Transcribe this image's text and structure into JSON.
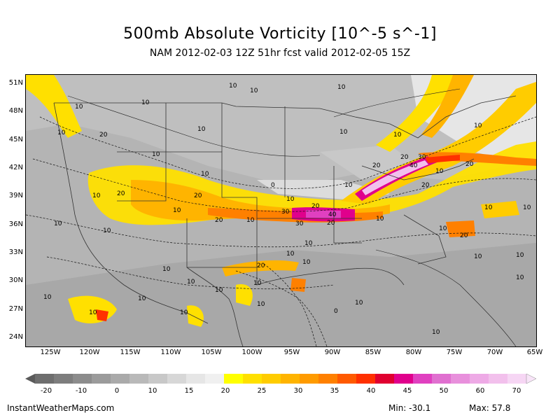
{
  "title": "500mb Absolute Vorticity [10^-5 s^-1]",
  "subtitle": "NAM 2012-02-03 12Z 51hr fcst valid 2012-02-05 15Z",
  "lat_labels": [
    "51N",
    "48N",
    "45N",
    "42N",
    "39N",
    "36N",
    "33N",
    "30N",
    "27N",
    "24N"
  ],
  "lon_labels": [
    "125W",
    "120W",
    "115W",
    "110W",
    "105W",
    "100W",
    "95W",
    "90W",
    "85W",
    "80W",
    "75W",
    "70W",
    "65W"
  ],
  "colorbar": {
    "labels": [
      "-20",
      "-10",
      "0",
      "10",
      "15",
      "20",
      "25",
      "30",
      "35",
      "40",
      "45",
      "50",
      "60",
      "70"
    ],
    "colors": [
      "#6e6e6e",
      "#7d7d7d",
      "#8c8c8c",
      "#9b9b9b",
      "#aaaaaa",
      "#b9b9b9",
      "#c8c8c8",
      "#d7d7d7",
      "#e6e6e6",
      "#f0f0f0",
      "#ffff00",
      "#ffe000",
      "#ffcc00",
      "#ffb400",
      "#ff9b00",
      "#ff8000",
      "#ff5a00",
      "#ff3000",
      "#e00030",
      "#e0008c",
      "#e040c0",
      "#e070d0",
      "#e890dc",
      "#eeaae6",
      "#f2c0ec",
      "#f6d6f4"
    ]
  },
  "contour_labels": [
    "10",
    "20",
    "30",
    "40",
    "0"
  ],
  "credit": "InstantWeatherMaps.com",
  "stats": {
    "min": "Min: -30.1",
    "max": "Max: 57.8"
  }
}
